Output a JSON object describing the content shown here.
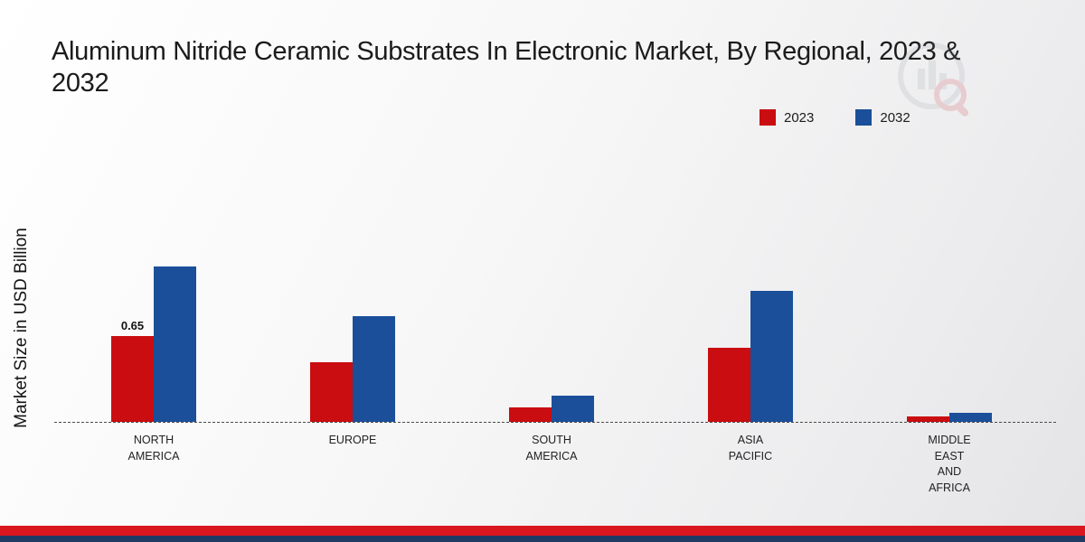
{
  "title": "Aluminum Nitride Ceramic Substrates In Electronic Market, By Regional, 2023 & 2032",
  "legend": [
    {
      "label": "2023",
      "color": "#c90d10"
    },
    {
      "label": "2032",
      "color": "#1b4f9a"
    }
  ],
  "chart_data": {
    "type": "bar",
    "title": "Aluminum Nitride Ceramic Substrates In Electronic Market, By Regional, 2023 & 2032",
    "ylabel": "Market Size in USD Billion",
    "xlabel": "",
    "ylim": [
      0,
      1.4
    ],
    "grid": false,
    "legend_position": "top-right",
    "baseline_style": "dashed",
    "categories": [
      "NORTH AMERICA",
      "EUROPE",
      "SOUTH AMERICA",
      "ASIA PACIFIC",
      "MIDDLE EAST AND AFRICA"
    ],
    "series": [
      {
        "name": "2023",
        "color": "#c90d10",
        "values": [
          0.65,
          0.45,
          0.11,
          0.56,
          0.04
        ],
        "value_labels": [
          "0.65",
          "",
          "",
          "",
          ""
        ]
      },
      {
        "name": "2032",
        "color": "#1b4f9a",
        "values": [
          1.18,
          0.8,
          0.2,
          0.99,
          0.07
        ],
        "value_labels": [
          "",
          "",
          "",
          "",
          ""
        ]
      }
    ]
  },
  "colors": {
    "bar_2023": "#c90d10",
    "bar_2032": "#1b4f9a",
    "footer_band_red": "#da161f",
    "footer_band_navy": "#203a66",
    "axis_line": "#4a4a4a"
  },
  "icons": {
    "watermark": "market-research-logo"
  }
}
